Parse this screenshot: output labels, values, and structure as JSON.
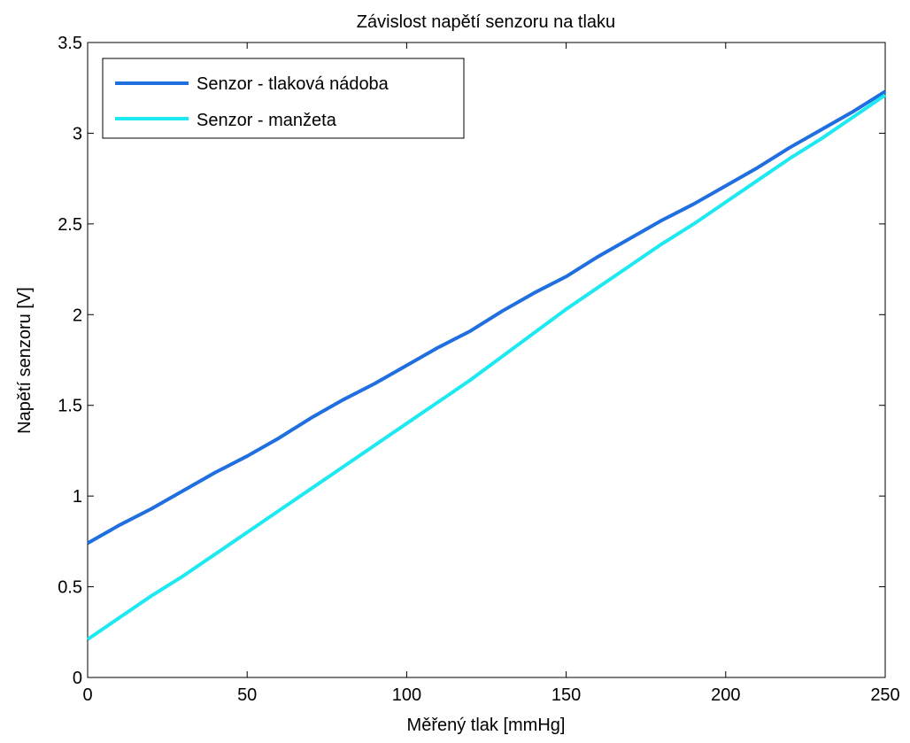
{
  "chart_data": {
    "type": "line",
    "title": "Závislost napětí senzoru na tlaku",
    "xlabel": "Měřený tlak [mmHg]",
    "ylabel": "Napětí senzoru [V]",
    "xlim": [
      0,
      250
    ],
    "ylim": [
      0,
      3.5
    ],
    "xticks": [
      0,
      50,
      100,
      150,
      200,
      250
    ],
    "yticks": [
      0,
      0.5,
      1,
      1.5,
      2,
      2.5,
      3,
      3.5
    ],
    "xtick_labels": [
      "0",
      "50",
      "100",
      "150",
      "200",
      "250"
    ],
    "ytick_labels": [
      "0",
      "0.5",
      "1",
      "1.5",
      "2",
      "2.5",
      "3",
      "3.5"
    ],
    "grid": false,
    "legend_position": "top-left",
    "x": [
      0,
      10,
      20,
      30,
      40,
      50,
      60,
      70,
      80,
      90,
      100,
      110,
      120,
      130,
      140,
      150,
      160,
      170,
      180,
      190,
      200,
      210,
      220,
      230,
      240,
      250
    ],
    "series": [
      {
        "name": "Senzor - tlaková nádoba",
        "color": "#1f6fe0",
        "values": [
          0.74,
          0.84,
          0.93,
          1.03,
          1.13,
          1.22,
          1.32,
          1.43,
          1.53,
          1.62,
          1.72,
          1.82,
          1.91,
          2.02,
          2.12,
          2.21,
          2.32,
          2.42,
          2.52,
          2.61,
          2.71,
          2.81,
          2.92,
          3.02,
          3.12,
          3.23
        ]
      },
      {
        "name": "Senzor - manžeta",
        "color": "#1ee8f0",
        "values": [
          0.21,
          0.33,
          0.45,
          0.56,
          0.68,
          0.8,
          0.92,
          1.04,
          1.16,
          1.28,
          1.4,
          1.52,
          1.64,
          1.77,
          1.9,
          2.03,
          2.15,
          2.27,
          2.39,
          2.5,
          2.62,
          2.74,
          2.86,
          2.97,
          3.09,
          3.21
        ]
      }
    ]
  }
}
